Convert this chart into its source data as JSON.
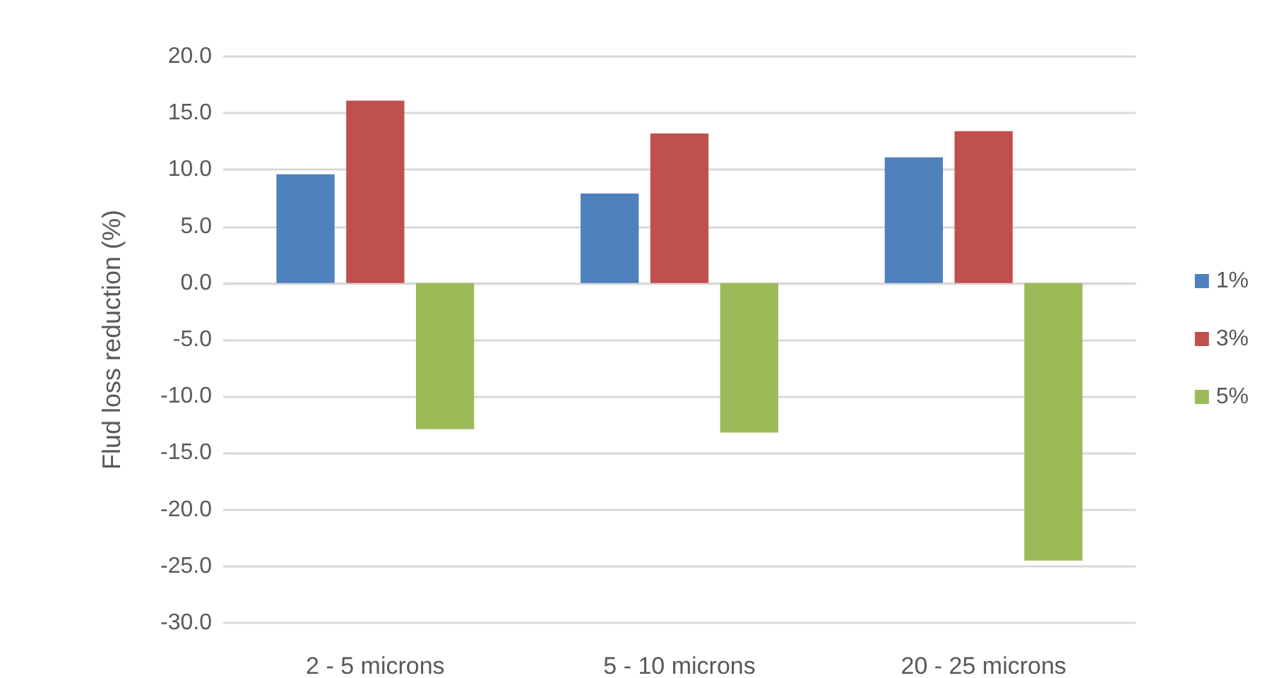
{
  "chart_data": {
    "type": "bar",
    "ylabel": "Flud loss reduction (%)",
    "categories": [
      "2 - 5 microns",
      "5 - 10 microns",
      "20 - 25 microns"
    ],
    "series": [
      {
        "name": "1%",
        "color": "#4f81bd",
        "values": [
          9.6,
          7.9,
          11.1
        ]
      },
      {
        "name": "3%",
        "color": "#c0504d",
        "values": [
          16.1,
          13.2,
          13.4
        ]
      },
      {
        "name": "5%",
        "color": "#9bbb59",
        "values": [
          -12.9,
          -13.2,
          -24.5
        ]
      }
    ],
    "ylim": [
      -30,
      20
    ],
    "yticks": [
      {
        "value": -30,
        "label": "-30.0"
      },
      {
        "value": -25,
        "label": "-25.0"
      },
      {
        "value": -20,
        "label": "-20.0"
      },
      {
        "value": -15,
        "label": "-15.0"
      },
      {
        "value": -10,
        "label": "-10.0"
      },
      {
        "value": -5,
        "label": "-5.0"
      },
      {
        "value": 0,
        "label": "0.0"
      },
      {
        "value": 5,
        "label": "5.0"
      },
      {
        "value": 10,
        "label": "10.0"
      },
      {
        "value": 15,
        "label": "15.0"
      },
      {
        "value": 20,
        "label": "20.0"
      }
    ],
    "grid": "y",
    "legend": "right"
  }
}
